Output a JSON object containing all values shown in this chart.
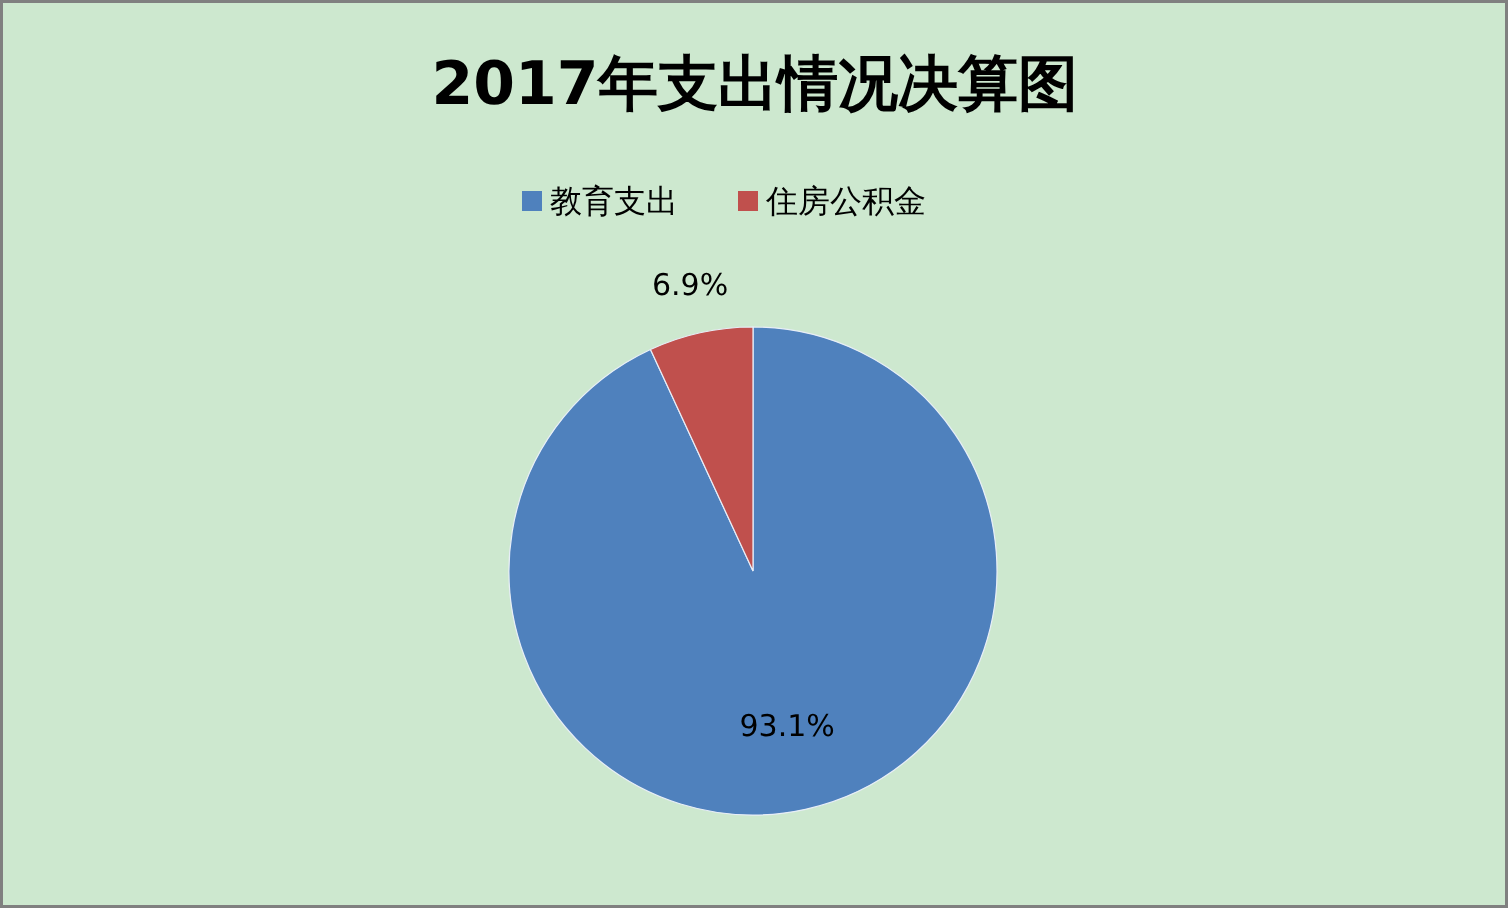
{
  "chart_data": {
    "type": "pie",
    "title": "2017年支出情况决算图",
    "categories": [
      "教育支出",
      "住房公积金"
    ],
    "values": [
      93.1,
      6.9
    ],
    "colors": [
      "#4f81bd",
      "#c0504d"
    ],
    "value_labels": [
      "93.1%",
      "6.9%"
    ],
    "legend": "top"
  }
}
